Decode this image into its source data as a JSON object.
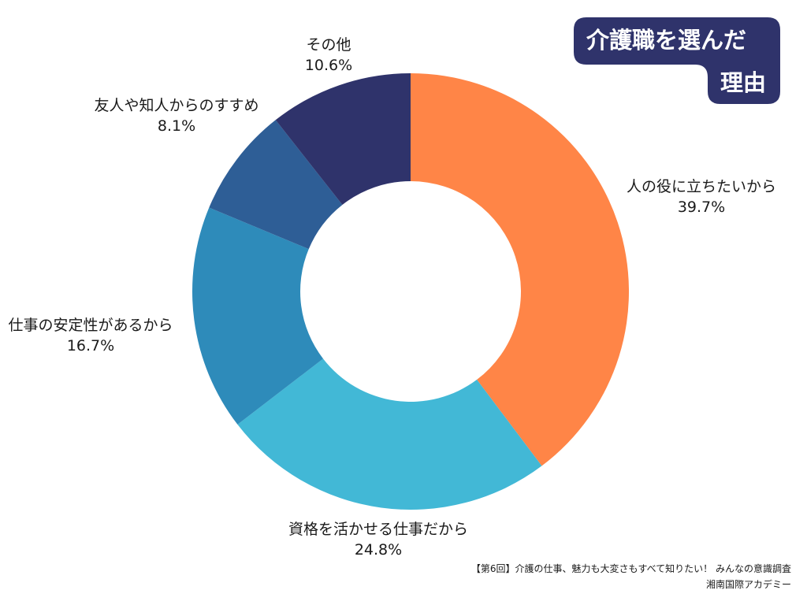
{
  "title": {
    "line1": "介護職を選んだ",
    "line2": "理由",
    "bg_color": "#2F336B"
  },
  "footnote": {
    "line1": "【第6回】介護の仕事、魅力も大変さもすべて知りたい！ みんなの意識調査",
    "line2": "湘南国際アカデミー"
  },
  "chart_data": {
    "type": "pie",
    "donut": true,
    "title": "介護職を選んだ理由",
    "unit": "%",
    "slices": [
      {
        "label": "人の役に立ちたいから",
        "value": 39.7,
        "display": "39.7%",
        "color": "#FF8547"
      },
      {
        "label": "資格を活かせる仕事だから",
        "value": 24.8,
        "display": "24.8%",
        "color": "#42B8D6"
      },
      {
        "label": "仕事の安定性があるから",
        "value": 16.7,
        "display": "16.7%",
        "color": "#2E8BBA"
      },
      {
        "label": "友人や知人からのすすめ",
        "value": 8.1,
        "display": "8.1%",
        "color": "#2E5E96"
      },
      {
        "label": "その他",
        "value": 10.6,
        "display": "10.6%",
        "color": "#2F336B"
      }
    ]
  }
}
